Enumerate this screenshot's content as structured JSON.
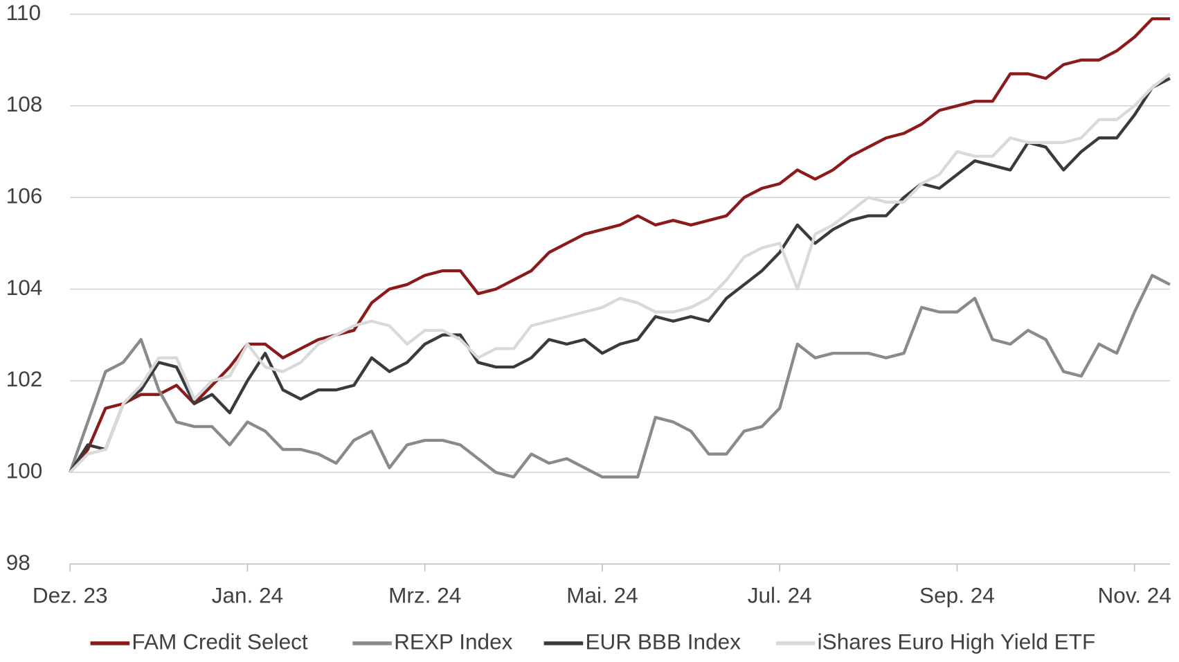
{
  "chart_data": {
    "type": "line",
    "categories": [
      "Dez. 23",
      null,
      null,
      null,
      null,
      null,
      null,
      null,
      null,
      null,
      "Jan. 24",
      null,
      null,
      null,
      null,
      null,
      null,
      null,
      null,
      null,
      "Mrz. 24",
      null,
      null,
      null,
      null,
      null,
      null,
      null,
      null,
      null,
      "Mai. 24",
      null,
      null,
      null,
      null,
      null,
      null,
      null,
      null,
      null,
      "Jul. 24",
      null,
      null,
      null,
      null,
      null,
      null,
      null,
      null,
      null,
      "Sep. 24",
      null,
      null,
      null,
      null,
      null,
      null,
      null,
      null,
      null,
      "Nov. 24",
      null,
      null
    ],
    "series": [
      {
        "name": "FAM Credit Select",
        "color": "#8b1a1a",
        "values": [
          100,
          100.5,
          101.4,
          101.5,
          101.7,
          101.7,
          101.9,
          101.5,
          101.9,
          102.3,
          102.8,
          102.8,
          102.5,
          102.7,
          102.9,
          103.0,
          103.1,
          103.7,
          104.0,
          104.1,
          104.3,
          104.4,
          104.4,
          103.9,
          104.0,
          104.2,
          104.4,
          104.8,
          105.0,
          105.2,
          105.3,
          105.4,
          105.6,
          105.4,
          105.5,
          105.4,
          105.5,
          105.6,
          106.0,
          106.2,
          106.3,
          106.6,
          106.4,
          106.6,
          106.9,
          107.1,
          107.3,
          107.4,
          107.6,
          107.9,
          108.0,
          108.1,
          108.1,
          108.7,
          108.7,
          108.6,
          108.9,
          109.0,
          109.0,
          109.2,
          109.5,
          109.9,
          109.9
        ]
      },
      {
        "name": "REXP Index",
        "color": "#8a8a8a",
        "values": [
          100,
          101.1,
          102.2,
          102.4,
          102.9,
          101.8,
          101.1,
          101.0,
          101.0,
          100.6,
          101.1,
          100.9,
          100.5,
          100.5,
          100.4,
          100.2,
          100.7,
          100.9,
          100.1,
          100.6,
          100.7,
          100.7,
          100.6,
          100.3,
          100.0,
          99.9,
          100.4,
          100.2,
          100.3,
          100.1,
          99.9,
          99.9,
          99.9,
          101.2,
          101.1,
          100.9,
          100.4,
          100.4,
          100.9,
          101.0,
          101.4,
          102.8,
          102.5,
          102.6,
          102.6,
          102.6,
          102.5,
          102.6,
          103.6,
          103.5,
          103.5,
          103.8,
          102.9,
          102.8,
          103.1,
          102.9,
          102.2,
          102.1,
          102.8,
          102.6,
          103.5,
          104.3,
          104.1
        ]
      },
      {
        "name": "EUR BBB Index",
        "color": "#3a3a3a",
        "values": [
          100,
          100.6,
          100.5,
          101.5,
          101.8,
          102.4,
          102.3,
          101.5,
          101.7,
          101.3,
          102.0,
          102.6,
          101.8,
          101.6,
          101.8,
          101.8,
          101.9,
          102.5,
          102.2,
          102.4,
          102.8,
          103.0,
          103.0,
          102.4,
          102.3,
          102.3,
          102.5,
          102.9,
          102.8,
          102.9,
          102.6,
          102.8,
          102.9,
          103.4,
          103.3,
          103.4,
          103.3,
          103.8,
          104.1,
          104.4,
          104.8,
          105.4,
          105.0,
          105.3,
          105.5,
          105.6,
          105.6,
          106.0,
          106.3,
          106.2,
          106.5,
          106.8,
          106.7,
          106.6,
          107.2,
          107.1,
          106.6,
          107.0,
          107.3,
          107.3,
          107.8,
          108.4,
          108.6
        ]
      },
      {
        "name": "iShares Euro High Yield ETF",
        "color": "#d9d9d9",
        "values": [
          100,
          100.4,
          100.5,
          101.5,
          101.9,
          102.5,
          102.5,
          101.6,
          102.0,
          102.1,
          102.8,
          102.3,
          102.2,
          102.4,
          102.8,
          103.0,
          103.2,
          103.3,
          103.2,
          102.8,
          103.1,
          103.1,
          102.9,
          102.5,
          102.7,
          102.7,
          103.2,
          103.3,
          103.4,
          103.5,
          103.6,
          103.8,
          103.7,
          103.5,
          103.5,
          103.6,
          103.8,
          104.2,
          104.7,
          104.9,
          105.0,
          104.0,
          105.2,
          105.4,
          105.7,
          106.0,
          105.9,
          105.9,
          106.3,
          106.5,
          107.0,
          106.9,
          106.9,
          107.3,
          107.2,
          107.2,
          107.2,
          107.3,
          107.7,
          107.7,
          108.0,
          108.4,
          108.7
        ]
      }
    ],
    "ylim": [
      98,
      110
    ],
    "yticks": [
      98,
      100,
      102,
      104,
      106,
      108,
      110
    ],
    "grid": true,
    "legend": "bottom"
  }
}
